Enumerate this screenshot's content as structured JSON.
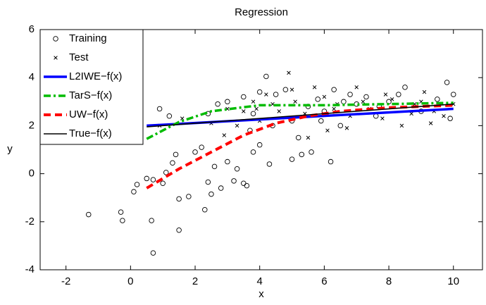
{
  "chart_data": {
    "type": "scatter",
    "title": "Regression",
    "x_label": "x",
    "y_label": "y",
    "xlim": [
      -2.8,
      10.9
    ],
    "ylim": [
      -4,
      6
    ],
    "xticks": [
      -2,
      0,
      2,
      4,
      6,
      8,
      10
    ],
    "yticks": [
      -4,
      -2,
      0,
      2,
      4,
      6
    ],
    "legend": "upper left",
    "series": [
      {
        "name": "Training",
        "mode": "markers",
        "marker": "circle",
        "color": "#000000",
        "x": [
          -1.3,
          -0.3,
          -0.25,
          0.65,
          0.7,
          1.5,
          0.2,
          0.1,
          0.5,
          0.7,
          1.0,
          1.1,
          1.3,
          1.4,
          1.5,
          1.8,
          2.0,
          2.2,
          2.4,
          2.3,
          2.6,
          2.8,
          2.5,
          3.0,
          3.2,
          3.5,
          3.6,
          3.3,
          3.8,
          4.0,
          4.3,
          5.0,
          5.3,
          5.6,
          6.2,
          0.9,
          1.2,
          2.4,
          2.7,
          3.0,
          3.5,
          3.8,
          4.0,
          4.2,
          4.5,
          4.8,
          5.0,
          5.2,
          5.5,
          5.8,
          6.0,
          6.3,
          6.5,
          6.8,
          7.0,
          7.3,
          7.6,
          8.0,
          8.3,
          8.5,
          9.0,
          9.5,
          9.8,
          10.0,
          9.9,
          3.7,
          4.4,
          5.9,
          7.7,
          6.6
        ],
        "values": [
          -1.7,
          -1.6,
          -1.95,
          -1.95,
          -3.3,
          -2.35,
          -0.45,
          -0.75,
          -0.2,
          -0.25,
          -0.4,
          0.05,
          0.45,
          0.8,
          -1.05,
          -0.95,
          0.9,
          1.1,
          -0.35,
          -1.5,
          0.3,
          -0.6,
          -0.85,
          0.5,
          -0.3,
          -0.4,
          -0.5,
          0.2,
          0.9,
          1.2,
          0.4,
          0.6,
          0.8,
          0.9,
          0.5,
          2.7,
          2.4,
          2.5,
          2.9,
          3.0,
          3.2,
          2.5,
          3.4,
          4.05,
          3.3,
          3.5,
          2.2,
          1.5,
          2.8,
          3.1,
          2.6,
          3.5,
          2.0,
          3.3,
          2.9,
          3.2,
          2.4,
          3.0,
          3.3,
          3.6,
          2.6,
          3.1,
          3.8,
          3.3,
          2.3,
          1.8,
          2.0,
          2.2,
          2.8,
          3.0
        ]
      },
      {
        "name": "Test",
        "mode": "markers",
        "marker": "x",
        "color": "#000000",
        "x": [
          0.9,
          1.6,
          2.5,
          3.0,
          3.3,
          3.8,
          4.2,
          4.6,
          4.9,
          5.1,
          5.4,
          5.7,
          6.0,
          6.4,
          6.7,
          7.0,
          7.4,
          7.8,
          8.1,
          8.4,
          8.8,
          9.1,
          9.4,
          9.7,
          10.0,
          9.3,
          5.5,
          6.1,
          4.0,
          3.5,
          7.2,
          8.7,
          5.0,
          6.8,
          4.4,
          9.0,
          2.9,
          3.9,
          7.9,
          6.3
        ],
        "values": [
          2.0,
          2.3,
          2.1,
          2.7,
          2.0,
          3.0,
          3.3,
          2.6,
          4.2,
          3.0,
          2.5,
          3.6,
          3.2,
          2.9,
          1.9,
          3.6,
          2.7,
          2.3,
          3.1,
          2.0,
          2.9,
          3.4,
          2.6,
          2.4,
          2.9,
          2.1,
          1.5,
          1.8,
          2.2,
          2.6,
          3.0,
          2.5,
          3.5,
          2.4,
          2.9,
          3.0,
          1.6,
          2.7,
          3.3,
          2.7
        ]
      },
      {
        "name": "L2IWE−f(x)",
        "mode": "lines",
        "dash": "solid",
        "width": 3.5,
        "color": "#0000ff",
        "x": [
          0.5,
          10
        ],
        "values": [
          2.0,
          2.7
        ]
      },
      {
        "name": "TarS−f(x)",
        "mode": "lines",
        "dash": "dashdot",
        "width": 3.5,
        "color": "#00bb00",
        "x": [
          0.5,
          1.5,
          2.5,
          4,
          6,
          8,
          10
        ],
        "values": [
          1.45,
          2.15,
          2.6,
          2.85,
          2.85,
          2.9,
          2.95
        ]
      },
      {
        "name": "UW−f(x)",
        "mode": "lines",
        "dash": "dash",
        "width": 4,
        "color": "#ff0000",
        "x": [
          0.5,
          1.5,
          2.5,
          3.5,
          4.5,
          5.5,
          6.5,
          8,
          10
        ],
        "values": [
          -0.6,
          0.2,
          0.9,
          1.6,
          2.1,
          2.4,
          2.6,
          2.75,
          2.85
        ]
      },
      {
        "name": "True−f(x)",
        "mode": "lines",
        "dash": "solid",
        "width": 1.6,
        "color": "#000000",
        "x": [
          0.5,
          10
        ],
        "values": [
          1.95,
          2.9
        ]
      }
    ]
  }
}
